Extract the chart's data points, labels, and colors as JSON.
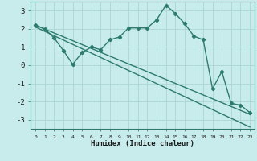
{
  "title": "",
  "xlabel": "Humidex (Indice chaleur)",
  "background_color": "#c8ecec",
  "grid_color": "#b0d8d8",
  "line_color": "#2d7a6e",
  "xlim": [
    -0.5,
    23.5
  ],
  "ylim": [
    -3.5,
    3.5
  ],
  "yticks": [
    -3,
    -2,
    -1,
    0,
    1,
    2,
    3
  ],
  "xticks": [
    0,
    1,
    2,
    3,
    4,
    5,
    6,
    7,
    8,
    9,
    10,
    11,
    12,
    13,
    14,
    15,
    16,
    17,
    18,
    19,
    20,
    21,
    22,
    23
  ],
  "line1_x": [
    0,
    1,
    2,
    3,
    4,
    5,
    6,
    7,
    8,
    9,
    10,
    11,
    12,
    13,
    14,
    15,
    16,
    17,
    18,
    19,
    20,
    21,
    22,
    23
  ],
  "line1_y": [
    2.2,
    2.0,
    1.5,
    0.8,
    0.05,
    0.7,
    1.0,
    0.85,
    1.4,
    1.55,
    2.05,
    2.05,
    2.05,
    2.5,
    3.3,
    2.85,
    2.3,
    1.6,
    1.4,
    -1.3,
    -0.35,
    -2.1,
    -2.2,
    -2.6
  ],
  "line2_x": [
    0,
    23
  ],
  "line2_y": [
    2.2,
    -2.7
  ],
  "line3_x": [
    0,
    23
  ],
  "line3_y": [
    2.1,
    -3.4
  ]
}
